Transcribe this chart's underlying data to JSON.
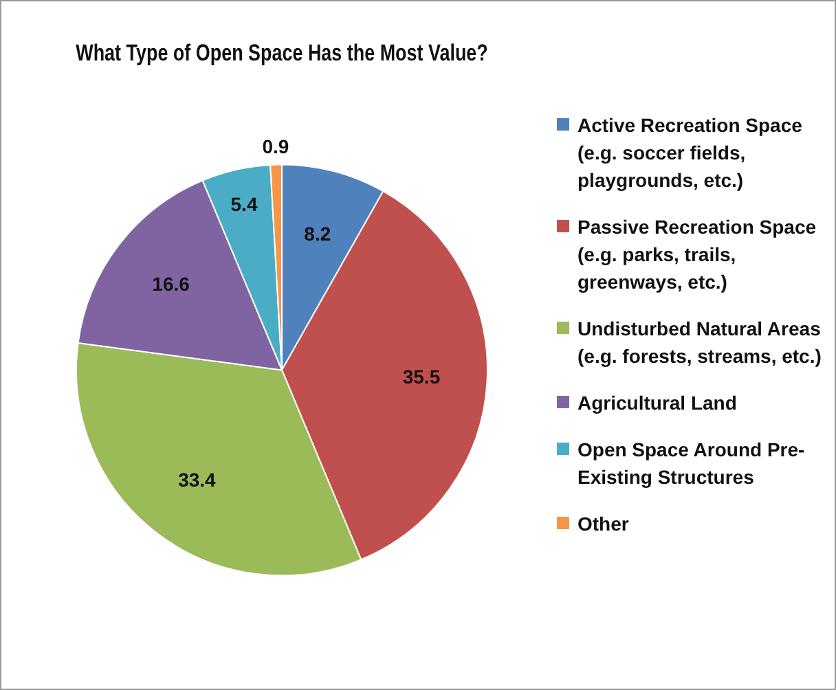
{
  "chart_data": {
    "type": "pie",
    "title": "What Type of Open Space Has the Most Value?",
    "categories": [
      "Active Recreation Space (e.g. soccer fields, playgrounds, etc.)",
      "Passive Recreation Space (e.g. parks, trails, greenways, etc.)",
      "Undisturbed Natural Areas (e.g. forests, streams, etc.)",
      "Agricultural Land",
      "Open Space Around Pre-Existing Structures",
      "Other"
    ],
    "values": [
      8.2,
      35.5,
      33.4,
      16.6,
      5.4,
      0.9
    ],
    "colors": [
      "#4f81bd",
      "#c0504d",
      "#9bbb59",
      "#8064a2",
      "#4bacc6",
      "#f79646"
    ],
    "data_labels": true,
    "legend": "right"
  }
}
